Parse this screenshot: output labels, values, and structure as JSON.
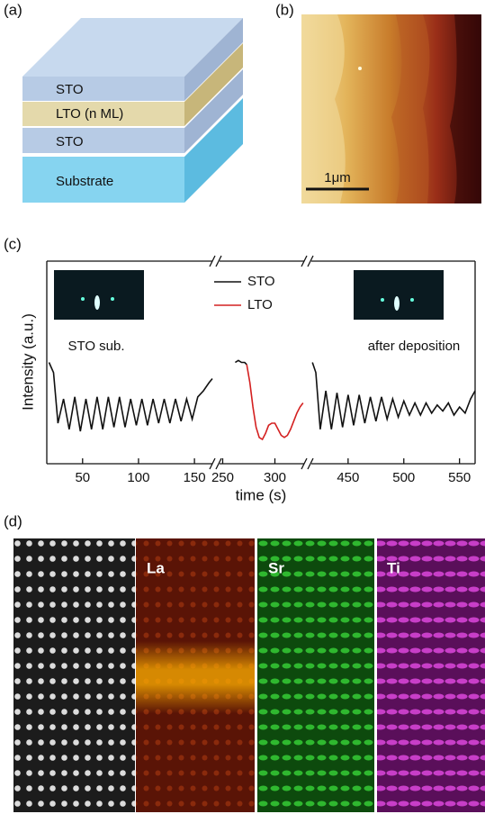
{
  "figure": {
    "a": {
      "label": "(a)",
      "layers": [
        "STO",
        "LTO (n ML)",
        "STO",
        "Substrate"
      ]
    },
    "b": {
      "label": "(b)",
      "scale_bar": "1μm"
    },
    "c": {
      "label": "(c)",
      "insets": [
        "STO sub.",
        "after deposition"
      ]
    },
    "d": {
      "label": "(d)",
      "maps": [
        "La",
        "Sr",
        "Ti"
      ]
    }
  },
  "chart_data": {
    "type": "line",
    "xlabel": "time (s)",
    "ylabel": "Intensity (a.u.)",
    "ylim": [
      0,
      1
    ],
    "legend": "upper center",
    "segments": [
      {
        "xlim": [
          18,
          166
        ],
        "xticks": [
          50,
          100,
          150
        ]
      },
      {
        "xlim": [
          247,
          328
        ],
        "xticks": [
          250,
          300
        ]
      },
      {
        "xlim": [
          417,
          564
        ],
        "xticks": [
          450,
          500,
          550
        ]
      }
    ],
    "series": [
      {
        "name": "STO",
        "color": "#111111",
        "x": [
          20,
          24,
          28,
          33,
          38,
          43,
          48,
          53,
          58,
          63,
          68,
          73,
          78,
          83,
          88,
          93,
          98,
          103,
          108,
          113,
          118,
          123,
          128,
          133,
          138,
          143,
          148,
          153,
          158,
          163,
          166,
          null,
          262,
          265,
          268,
          271,
          273,
          null,
          418,
          421,
          425,
          430,
          435,
          440,
          445,
          450,
          455,
          460,
          465,
          470,
          475,
          480,
          485,
          490,
          495,
          500,
          505,
          510,
          515,
          520,
          525,
          530,
          535,
          540,
          545,
          550,
          555,
          560,
          564
        ],
        "values": [
          0.5,
          0.45,
          0.2,
          0.32,
          0.17,
          0.33,
          0.16,
          0.32,
          0.17,
          0.33,
          0.17,
          0.33,
          0.18,
          0.33,
          0.18,
          0.32,
          0.19,
          0.32,
          0.19,
          0.32,
          0.2,
          0.32,
          0.2,
          0.32,
          0.21,
          0.32,
          0.22,
          0.33,
          0.36,
          0.4,
          0.42,
          null,
          0.5,
          0.51,
          0.5,
          0.5,
          0.49,
          null,
          0.5,
          0.45,
          0.17,
          0.36,
          0.17,
          0.35,
          0.18,
          0.34,
          0.19,
          0.34,
          0.2,
          0.33,
          0.21,
          0.33,
          0.22,
          0.32,
          0.23,
          0.31,
          0.24,
          0.3,
          0.24,
          0.3,
          0.25,
          0.29,
          0.26,
          0.3,
          0.24,
          0.28,
          0.25,
          0.32,
          0.36
        ]
      },
      {
        "name": "LTO",
        "color": "#d42020",
        "x": [
          273,
          276,
          279,
          282,
          285,
          288,
          291,
          294,
          297,
          300,
          303,
          306,
          309,
          312,
          315,
          318,
          321,
          324,
          327
        ],
        "values": [
          0.49,
          0.4,
          0.28,
          0.18,
          0.13,
          0.12,
          0.15,
          0.19,
          0.2,
          0.2,
          0.17,
          0.14,
          0.13,
          0.14,
          0.17,
          0.21,
          0.25,
          0.28,
          0.3
        ]
      }
    ]
  }
}
